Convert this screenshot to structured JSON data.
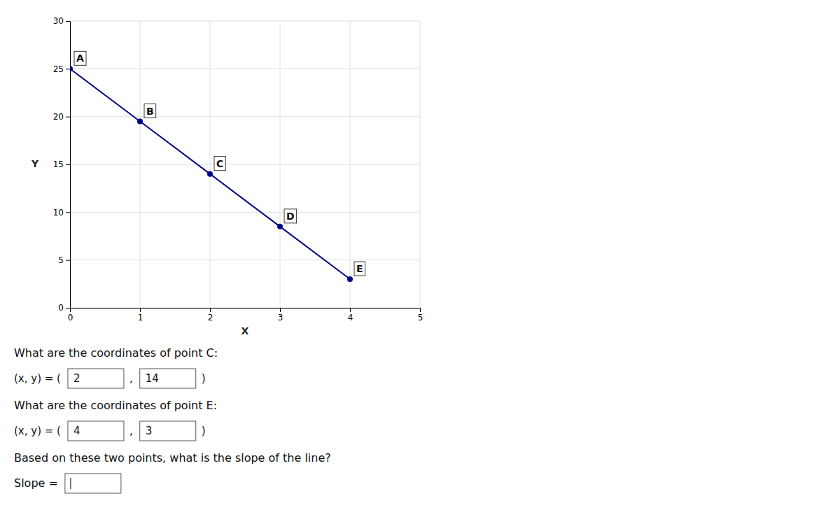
{
  "chart_data": {
    "type": "line",
    "xlabel": "X",
    "ylabel": "Y",
    "x": [
      0,
      1,
      2,
      3,
      4
    ],
    "values": [
      25,
      19.5,
      14,
      8.5,
      3
    ],
    "point_labels": [
      "A",
      "B",
      "C",
      "D",
      "E"
    ],
    "color": "#00008B",
    "marker": "circle",
    "xlim": [
      0,
      5
    ],
    "ylim": [
      0,
      30
    ],
    "xticks": [
      0,
      1,
      2,
      3,
      4,
      5
    ],
    "yticks": [
      0,
      5,
      10,
      15,
      20,
      25,
      30
    ],
    "grid": true,
    "annotations": {
      "answer_prefix": "(x, y) = (",
      "answer_separator": ",",
      "answer_suffix": ")",
      "questions": [
        {
          "text": "What are the coordinates of point C:",
          "answer": [
            "2",
            "14"
          ]
        },
        {
          "text": "What are the coordinates of point E:",
          "answer": [
            "4",
            "3"
          ]
        },
        {
          "text": "Based on these two points, what is the slope of the line?",
          "answer_label": "Slope ="
        }
      ]
    }
  }
}
